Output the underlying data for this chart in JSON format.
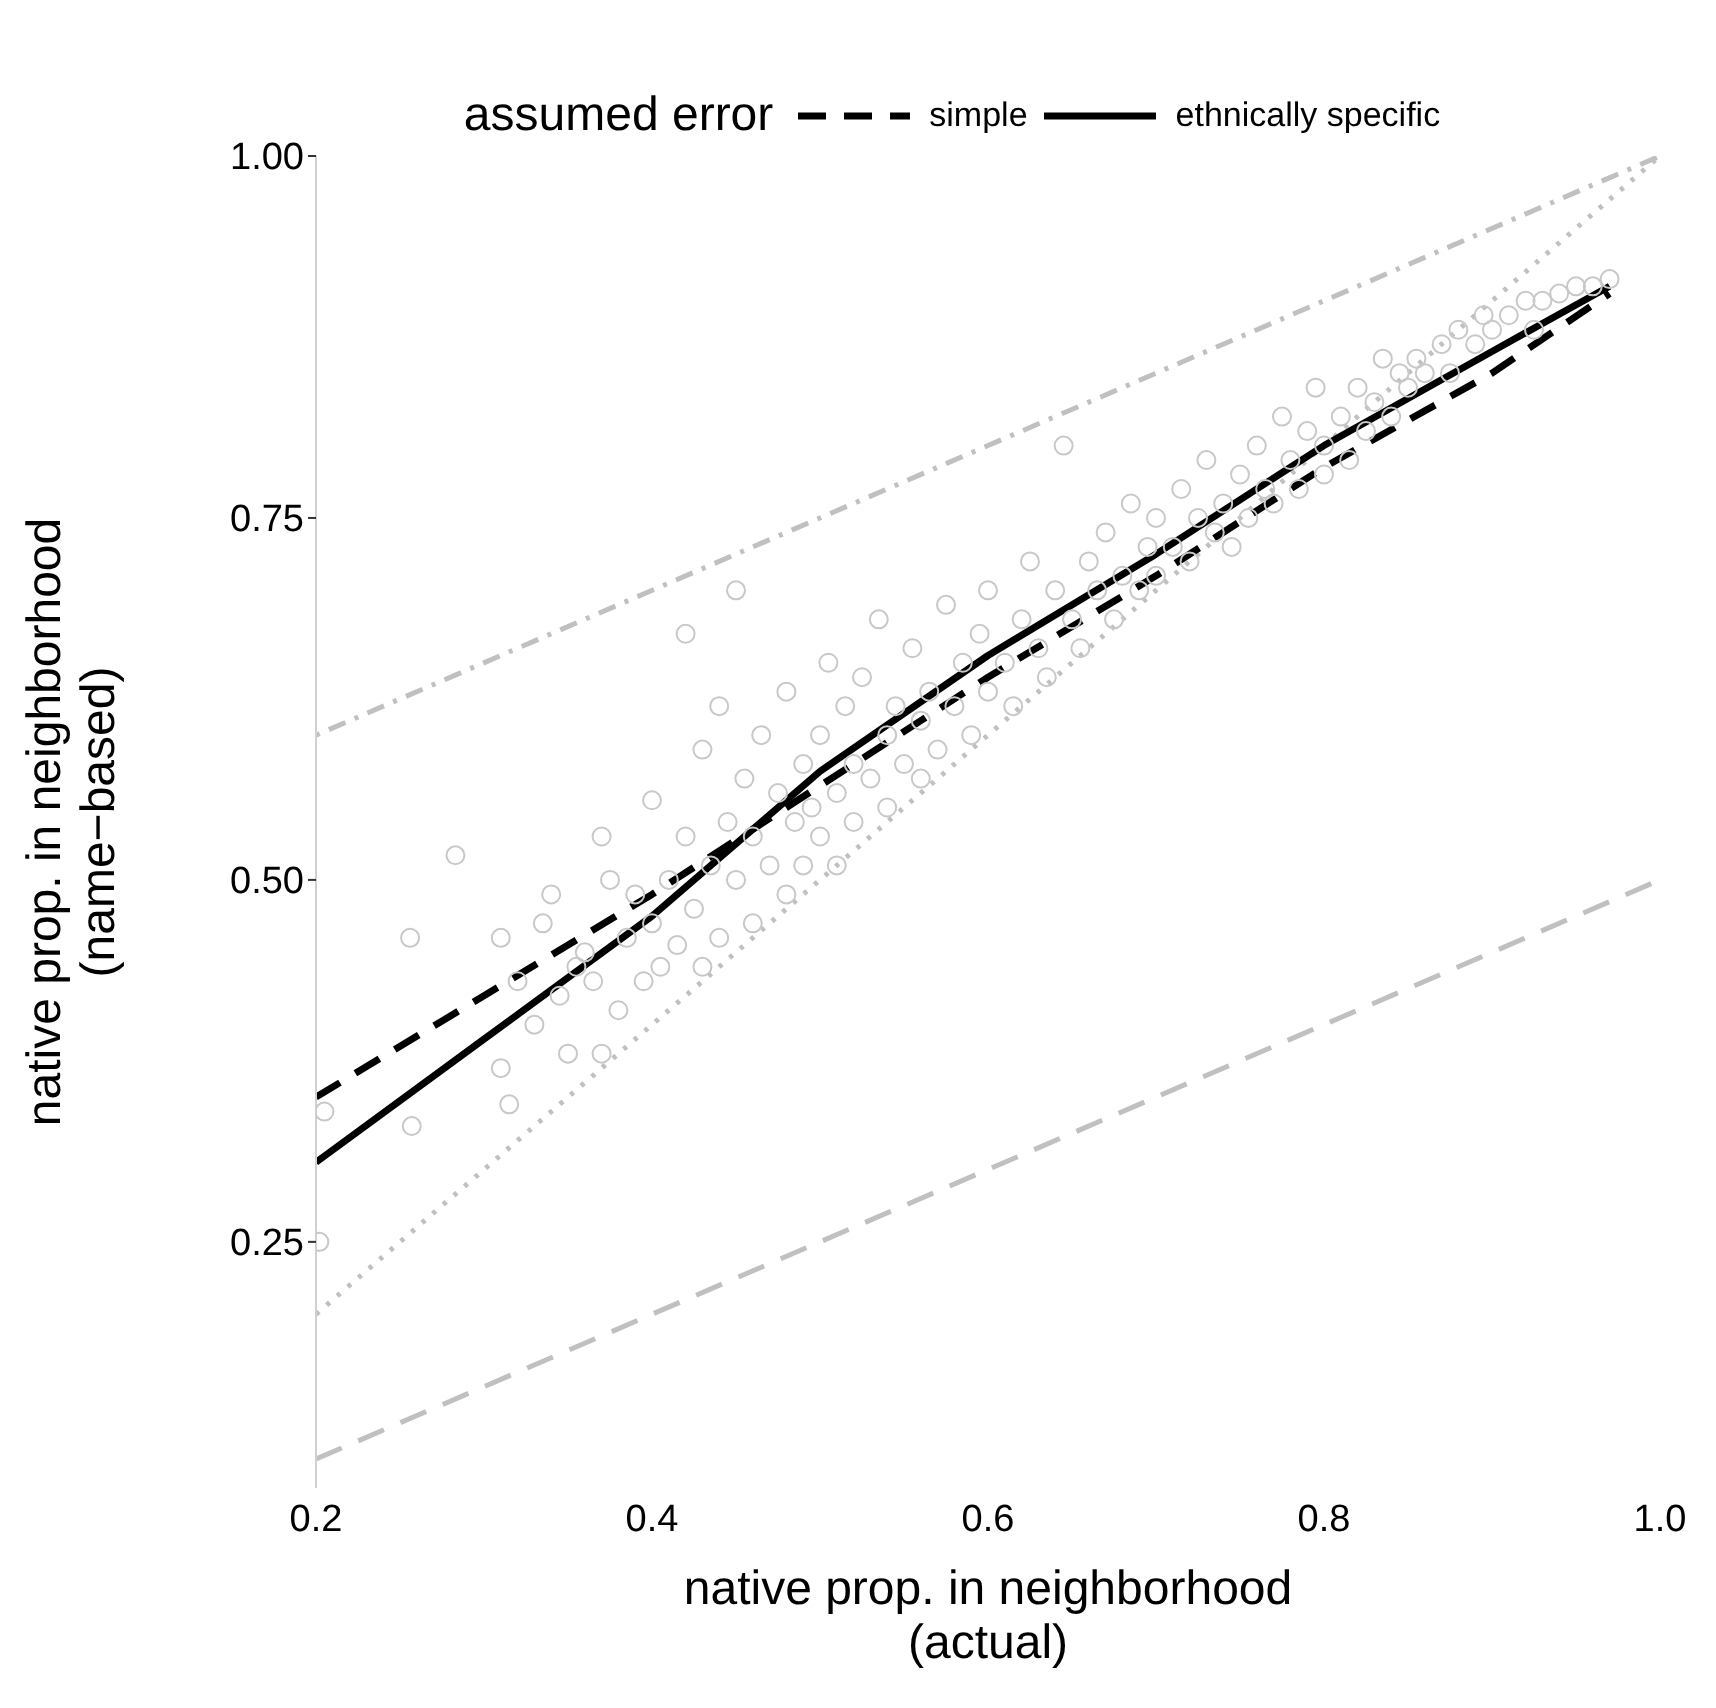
{
  "chart_data": {
    "type": "scatter",
    "xlabel": "native prop. in neighborhood\n(actual)",
    "ylabel": "native prop. in neighborhood\n(name−based)",
    "legend_title": "assumed error",
    "legend": "top",
    "grid": false,
    "xlim": [
      0.2,
      1.0
    ],
    "xticks": [
      0.2,
      0.4,
      0.6,
      0.8,
      {
        "value": 1.0,
        "label": "1.0"
      }
    ],
    "ylim": [
      0.08,
      1.0
    ],
    "yticks": [
      {
        "value": 0.25,
        "label": "0.25"
      },
      {
        "value": 0.5,
        "label": "0.50"
      },
      {
        "value": 0.75,
        "label": "0.75"
      },
      {
        "value": 1.0,
        "label": "1.00"
      }
    ],
    "series": [
      {
        "marker": "circle",
        "color": "#c8c8c8",
        "x": [
          0.202,
          0.205,
          0.256,
          0.257,
          0.283,
          0.31,
          0.31,
          0.315,
          0.32,
          0.33,
          0.335,
          0.34,
          0.345,
          0.35,
          0.355,
          0.36,
          0.365,
          0.37,
          0.37,
          0.375,
          0.38,
          0.385,
          0.39,
          0.395,
          0.4,
          0.4,
          0.405,
          0.41,
          0.415,
          0.42,
          0.42,
          0.425,
          0.43,
          0.43,
          0.435,
          0.44,
          0.44,
          0.445,
          0.45,
          0.45,
          0.455,
          0.46,
          0.46,
          0.465,
          0.47,
          0.475,
          0.48,
          0.48,
          0.485,
          0.49,
          0.49,
          0.495,
          0.5,
          0.5,
          0.505,
          0.51,
          0.51,
          0.515,
          0.52,
          0.52,
          0.525,
          0.53,
          0.535,
          0.54,
          0.54,
          0.545,
          0.55,
          0.555,
          0.56,
          0.56,
          0.565,
          0.57,
          0.575,
          0.58,
          0.585,
          0.59,
          0.595,
          0.6,
          0.6,
          0.61,
          0.615,
          0.62,
          0.625,
          0.63,
          0.635,
          0.64,
          0.645,
          0.65,
          0.655,
          0.66,
          0.665,
          0.67,
          0.675,
          0.68,
          0.685,
          0.69,
          0.695,
          0.7,
          0.7,
          0.71,
          0.715,
          0.72,
          0.725,
          0.73,
          0.735,
          0.74,
          0.745,
          0.75,
          0.755,
          0.76,
          0.765,
          0.77,
          0.775,
          0.78,
          0.785,
          0.79,
          0.795,
          0.8,
          0.8,
          0.81,
          0.815,
          0.82,
          0.825,
          0.83,
          0.835,
          0.84,
          0.845,
          0.85,
          0.855,
          0.86,
          0.87,
          0.875,
          0.88,
          0.89,
          0.895,
          0.9,
          0.91,
          0.92,
          0.925,
          0.93,
          0.94,
          0.95,
          0.96,
          0.97
        ],
        "values": [
          0.25,
          0.34,
          0.46,
          0.33,
          0.517,
          0.37,
          0.46,
          0.345,
          0.43,
          0.4,
          0.47,
          0.49,
          0.42,
          0.38,
          0.44,
          0.45,
          0.43,
          0.38,
          0.53,
          0.5,
          0.41,
          0.46,
          0.49,
          0.43,
          0.555,
          0.47,
          0.44,
          0.5,
          0.455,
          0.53,
          0.67,
          0.48,
          0.59,
          0.44,
          0.51,
          0.62,
          0.46,
          0.54,
          0.5,
          0.7,
          0.57,
          0.47,
          0.53,
          0.6,
          0.51,
          0.56,
          0.49,
          0.63,
          0.54,
          0.58,
          0.51,
          0.55,
          0.6,
          0.53,
          0.65,
          0.56,
          0.51,
          0.62,
          0.58,
          0.54,
          0.64,
          0.57,
          0.68,
          0.6,
          0.55,
          0.62,
          0.58,
          0.66,
          0.61,
          0.57,
          0.63,
          0.59,
          0.69,
          0.62,
          0.65,
          0.6,
          0.67,
          0.63,
          0.7,
          0.65,
          0.62,
          0.68,
          0.72,
          0.66,
          0.64,
          0.7,
          0.8,
          0.68,
          0.66,
          0.72,
          0.7,
          0.74,
          0.68,
          0.71,
          0.76,
          0.7,
          0.73,
          0.75,
          0.71,
          0.73,
          0.77,
          0.72,
          0.75,
          0.79,
          0.74,
          0.76,
          0.73,
          0.78,
          0.75,
          0.8,
          0.77,
          0.76,
          0.82,
          0.79,
          0.77,
          0.81,
          0.84,
          0.8,
          0.78,
          0.82,
          0.79,
          0.84,
          0.81,
          0.83,
          0.86,
          0.82,
          0.85,
          0.84,
          0.86,
          0.85,
          0.87,
          0.85,
          0.88,
          0.87,
          0.89,
          0.88,
          0.89,
          0.9,
          0.88,
          0.9,
          0.905,
          0.91,
          0.91,
          0.915
        ]
      },
      {
        "type": "line",
        "color": "#c0c0c0",
        "line_style": "dotted",
        "x": [
          0.2,
          1.0
        ],
        "values": [
          0.2,
          1.0
        ]
      },
      {
        "type": "line",
        "color": "#c0c0c0",
        "line_style": "dashdot",
        "x": [
          0.2,
          1.0
        ],
        "values": [
          0.6,
          1.0
        ]
      },
      {
        "type": "line",
        "color": "#c0c0c0",
        "line_style": "dashed",
        "x": [
          0.2,
          1.0
        ],
        "values": [
          0.1,
          0.5
        ]
      },
      {
        "type": "line",
        "name": "simple",
        "color": "#000000",
        "line_style": "dashed",
        "x": [
          0.2,
          0.3,
          0.4,
          0.5,
          0.6,
          0.7,
          0.8,
          0.9,
          0.97
        ],
        "values": [
          0.35,
          0.42,
          0.49,
          0.565,
          0.64,
          0.71,
          0.785,
          0.85,
          0.905
        ]
      },
      {
        "type": "line",
        "name": "ethnically specific",
        "color": "#000000",
        "line_style": "solid",
        "x": [
          0.2,
          0.3,
          0.4,
          0.5,
          0.6,
          0.7,
          0.8,
          0.9,
          0.97
        ],
        "values": [
          0.305,
          0.39,
          0.475,
          0.575,
          0.655,
          0.725,
          0.8,
          0.865,
          0.91
        ]
      }
    ]
  }
}
